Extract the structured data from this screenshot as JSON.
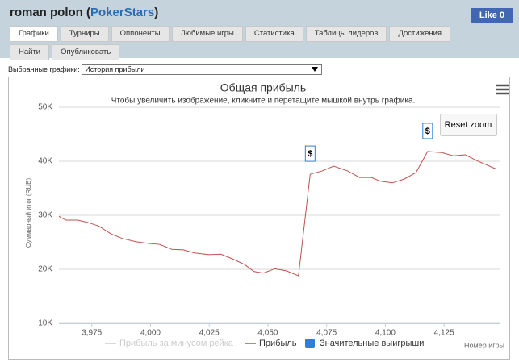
{
  "header": {
    "name": "roman polon (",
    "site": "PokerStars",
    "close": ")",
    "like": "Like",
    "like_count": "0"
  },
  "tabs": [
    "Графики",
    "Турниры",
    "Оппоненты",
    "Любимые игры",
    "Статистика",
    "Таблицы лидеров",
    "Достижения",
    "Найти",
    "Опубликовать"
  ],
  "selector": {
    "label": "Выбранные графики:",
    "value": "История прибыли"
  },
  "reset_zoom": "Reset zoom",
  "chart_data": {
    "type": "line",
    "title": "Общая прибыль",
    "subtitle": "Чтобы увеличить изображение, кликните и перетащите мышкой внутрь графика.",
    "y_label": "Суммарный итог (RUB)",
    "x_label": "Номер игры",
    "x": [
      3961,
      3964,
      3969,
      3973,
      3978,
      3983,
      3988,
      3994,
      3999,
      4004,
      4009,
      4014,
      4019,
      4025,
      4030,
      4035,
      4040,
      4044,
      4048,
      4053,
      4058,
      4063,
      4068,
      4073,
      4078,
      4084,
      4089,
      4094,
      4098,
      4103,
      4108,
      4113,
      4118,
      4124,
      4129,
      4134,
      4139,
      4147
    ],
    "series": [
      {
        "name": "Прибыль за минусом рейка",
        "color": "#cccccc",
        "visible": false
      },
      {
        "name": "Прибыль",
        "color": "#c0504d",
        "values": [
          29800,
          29100,
          29100,
          28700,
          28000,
          26600,
          25700,
          25100,
          24800,
          24600,
          23700,
          23600,
          23000,
          22700,
          22800,
          21900,
          20900,
          19600,
          19300,
          20100,
          19700,
          18800,
          37600,
          38200,
          39100,
          38200,
          37000,
          37000,
          36300,
          36000,
          36700,
          37900,
          41800,
          41600,
          41000,
          41200,
          40100,
          38600
        ]
      },
      {
        "name": "Значительные выигрыши",
        "color": "#2f7ed8",
        "type": "flags",
        "x": [
          4068,
          4118
        ],
        "labels": [
          "$",
          "$"
        ]
      }
    ],
    "xlim": [
      3961,
      4149
    ],
    "ylim": [
      10000,
      50000
    ],
    "xticks": [
      {
        "value": 3975,
        "label": "3,975"
      },
      {
        "value": 4000,
        "label": "4,000"
      },
      {
        "value": 4025,
        "label": "4,025"
      },
      {
        "value": 4050,
        "label": "4,050"
      },
      {
        "value": 4075,
        "label": "4,075"
      },
      {
        "value": 4100,
        "label": "4,100"
      },
      {
        "value": 4125,
        "label": "4,125"
      }
    ],
    "yticks": [
      {
        "value": 10000,
        "label": "10K"
      },
      {
        "value": 20000,
        "label": "20K"
      },
      {
        "value": 30000,
        "label": "30K"
      },
      {
        "value": 40000,
        "label": "40K"
      },
      {
        "value": 50000,
        "label": "50K"
      }
    ],
    "grid": true
  }
}
